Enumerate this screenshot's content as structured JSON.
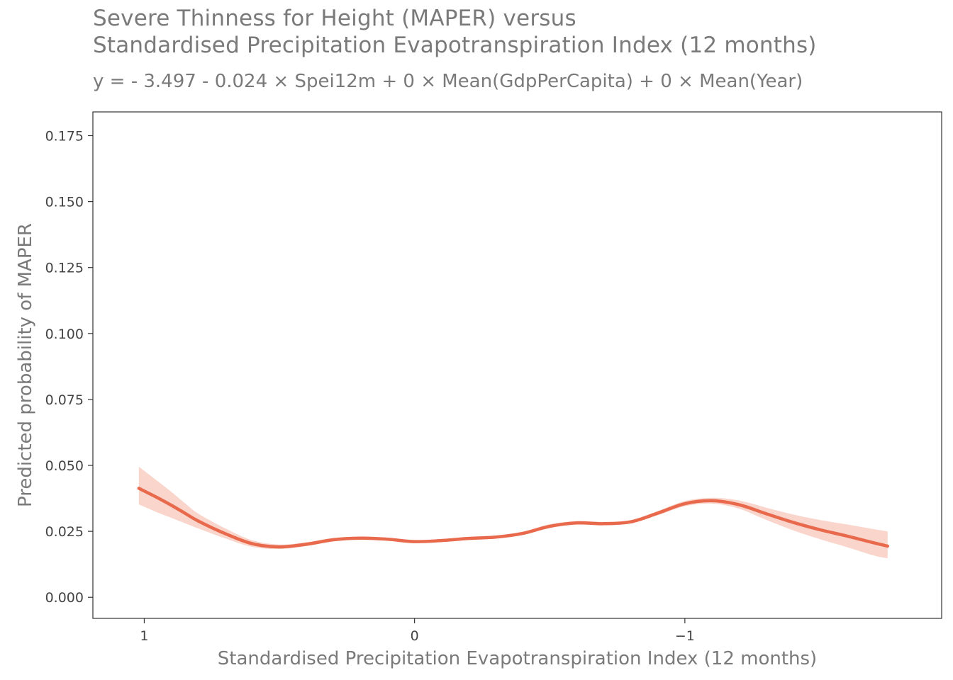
{
  "chart_data": {
    "type": "line",
    "title_lines": [
      "Severe Thinness for Height (MAPER) versus",
      "Standardised Precipitation Evapotranspiration Index (12 months)"
    ],
    "subtitle": "y =  - 3.497 - 0.024 × Spei12m + 0 × Mean(GdpPerCapita) + 0 × Mean(Year)",
    "xlabel": "Standardised Precipitation Evapotranspiration Index (12 months)",
    "ylabel": "Predicted probability of MAPER",
    "x_reversed": true,
    "xlim": [
      1.19,
      -1.95
    ],
    "ylim": [
      -0.008,
      0.184
    ],
    "x_ticks": [
      1,
      0,
      -1
    ],
    "x_tick_labels": [
      "1",
      "0",
      "−1"
    ],
    "y_ticks": [
      0,
      0.025,
      0.05,
      0.075,
      0.1,
      0.125,
      0.15,
      0.175
    ],
    "y_tick_labels": [
      "0.000",
      "0.025",
      "0.050",
      "0.075",
      "0.100",
      "0.125",
      "0.150",
      "0.175"
    ],
    "grid": false,
    "colors": {
      "line": "#e8694b",
      "ribbon": "#f8d0c6",
      "axis": "#333333",
      "text": "#7a7a7a"
    },
    "series": [
      {
        "x": [
          1.02,
          0.95,
          0.9,
          0.85,
          0.8,
          0.7,
          0.6,
          0.5,
          0.4,
          0.3,
          0.2,
          0.1,
          0.0,
          -0.1,
          -0.2,
          -0.3,
          -0.4,
          -0.5,
          -0.6,
          -0.7,
          -0.8,
          -0.9,
          -1.0,
          -1.1,
          -1.2,
          -1.3,
          -1.4,
          -1.5,
          -1.6,
          -1.7,
          -1.75
        ],
        "y": [
          0.0413,
          0.0377,
          0.0349,
          0.0319,
          0.0289,
          0.0241,
          0.0203,
          0.0191,
          0.0201,
          0.0218,
          0.0224,
          0.022,
          0.0211,
          0.0215,
          0.0223,
          0.0228,
          0.0242,
          0.0269,
          0.0282,
          0.0279,
          0.0286,
          0.0319,
          0.0355,
          0.0366,
          0.0351,
          0.0317,
          0.0284,
          0.0256,
          0.0232,
          0.0206,
          0.0194
        ],
        "lower": [
          0.0352,
          0.0321,
          0.0301,
          0.0281,
          0.0261,
          0.0223,
          0.0191,
          0.0183,
          0.0194,
          0.0212,
          0.0219,
          0.0215,
          0.0206,
          0.021,
          0.0218,
          0.0223,
          0.0236,
          0.0262,
          0.0275,
          0.0273,
          0.028,
          0.0311,
          0.0345,
          0.0355,
          0.0336,
          0.0294,
          0.0254,
          0.022,
          0.019,
          0.0158,
          0.0148
        ],
        "upper": [
          0.0495,
          0.044,
          0.04,
          0.0357,
          0.0317,
          0.0261,
          0.0216,
          0.02,
          0.0209,
          0.0225,
          0.023,
          0.0226,
          0.0217,
          0.0221,
          0.0229,
          0.0234,
          0.0249,
          0.0277,
          0.0289,
          0.0286,
          0.0293,
          0.0327,
          0.0365,
          0.0377,
          0.0367,
          0.034,
          0.0314,
          0.0293,
          0.0276,
          0.0258,
          0.025
        ]
      }
    ]
  }
}
